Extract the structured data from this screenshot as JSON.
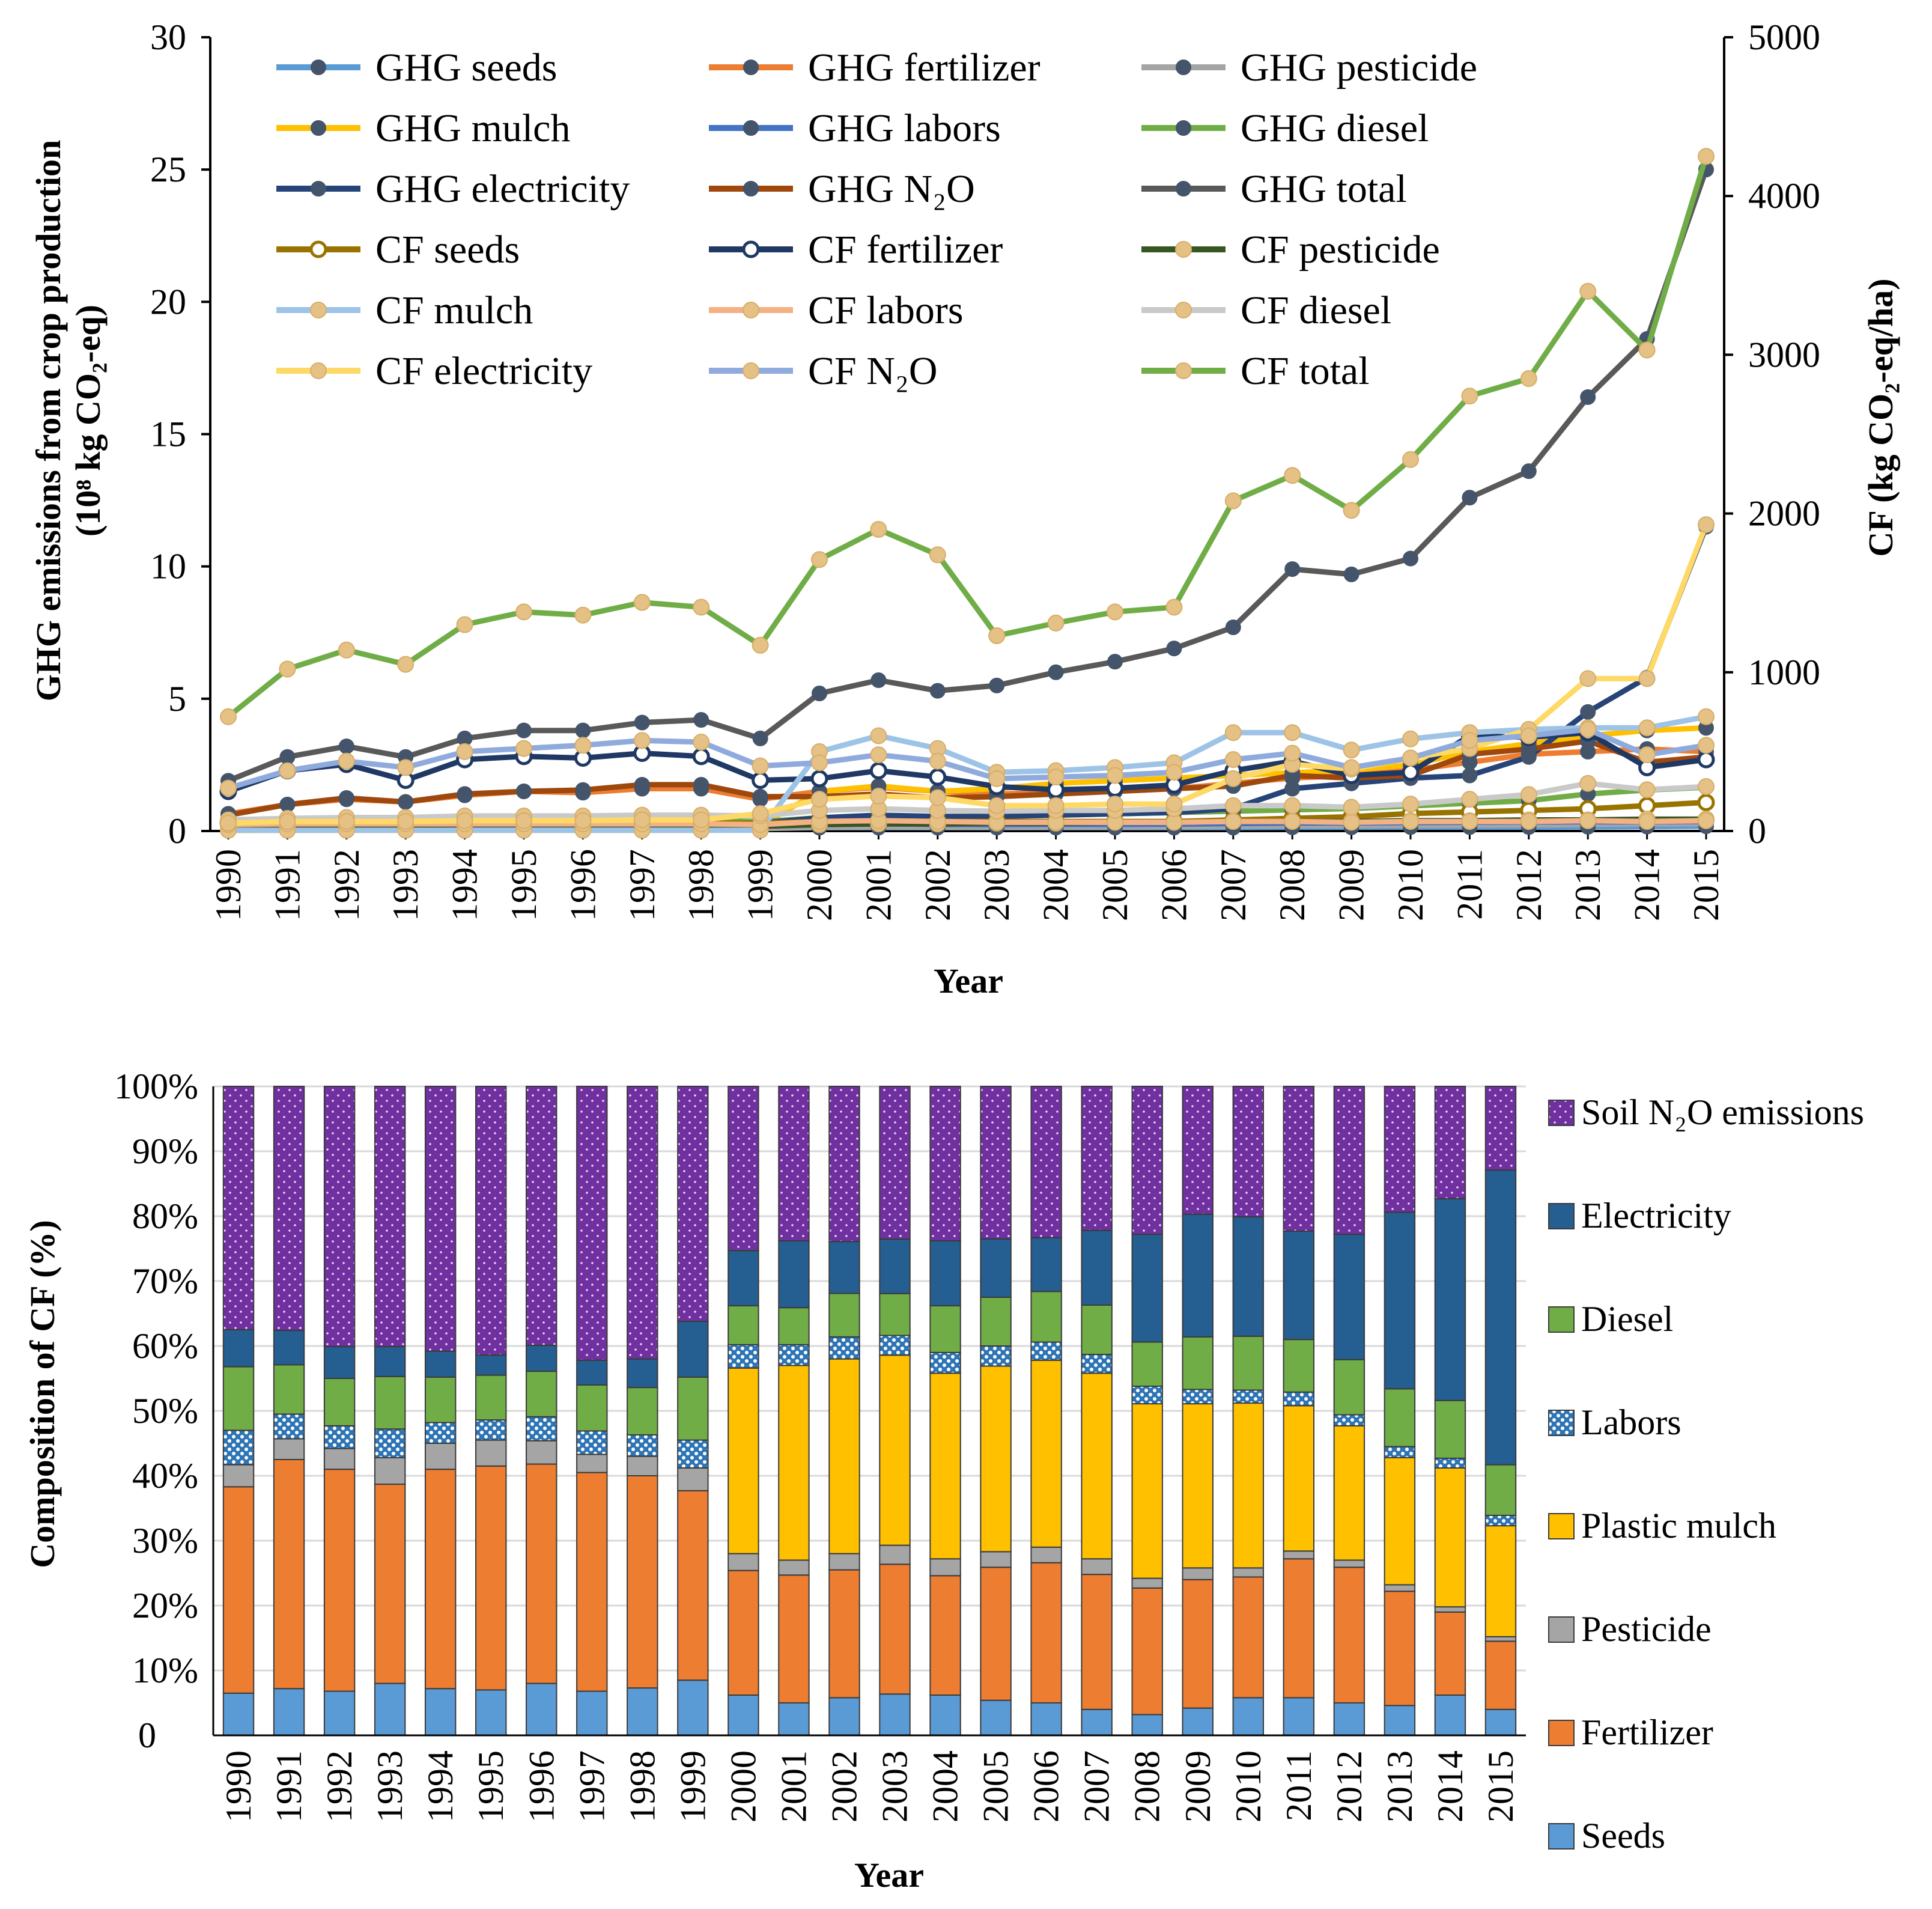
{
  "chart_data": [
    {
      "type": "line",
      "xlabel": "Year",
      "ylabel_left": "GHG emissions from crop production",
      "ylabel_left_unit": "(10⁸ kg CO₂-eq)",
      "ylabel_right": "CF (kg CO₂-eq/ha)",
      "ylim_left": [
        0,
        30
      ],
      "yticks_left": [
        "0",
        "5",
        "10",
        "15",
        "20",
        "25",
        "30"
      ],
      "ylim_right": [
        0,
        5000
      ],
      "yticks_right": [
        "0",
        "1000",
        "2000",
        "3000",
        "4000",
        "5000"
      ],
      "x": [
        "1990",
        "1991",
        "1992",
        "1993",
        "1994",
        "1995",
        "1996",
        "1997",
        "1998",
        "1999",
        "2000",
        "2001",
        "2002",
        "2003",
        "2004",
        "2005",
        "2006",
        "2007",
        "2008",
        "2009",
        "2010",
        "2011",
        "2012",
        "2013",
        "2014",
        "2015"
      ],
      "legend_position": "top-left",
      "series": [
        {
          "name": "GHG seeds",
          "axis": "left",
          "color": "#5b9bd5",
          "marker": "dark",
          "values": [
            0.12,
            0.12,
            0.12,
            0.12,
            0.12,
            0.12,
            0.12,
            0.12,
            0.12,
            0.12,
            0.13,
            0.13,
            0.13,
            0.13,
            0.13,
            0.13,
            0.13,
            0.13,
            0.14,
            0.14,
            0.15,
            0.15,
            0.15,
            0.16,
            0.17,
            0.18
          ]
        },
        {
          "name": "GHG fertilizer",
          "axis": "left",
          "color": "#ed7d31",
          "marker": "dark",
          "values": [
            0.65,
            1.0,
            1.2,
            1.1,
            1.35,
            1.5,
            1.45,
            1.6,
            1.6,
            1.2,
            1.5,
            1.65,
            1.5,
            1.4,
            1.45,
            1.5,
            1.6,
            1.8,
            2.0,
            2.1,
            2.3,
            2.6,
            2.9,
            3.0,
            3.1,
            3.0
          ]
        },
        {
          "name": "GHG pesticide",
          "axis": "left",
          "color": "#a5a5a5",
          "marker": "dark",
          "values": [
            0.05,
            0.08,
            0.09,
            0.09,
            0.1,
            0.1,
            0.1,
            0.11,
            0.11,
            0.09,
            0.13,
            0.15,
            0.14,
            0.14,
            0.15,
            0.15,
            0.16,
            0.18,
            0.2,
            0.2,
            0.21,
            0.22,
            0.23,
            0.25,
            0.27,
            0.28
          ]
        },
        {
          "name": "GHG mulch",
          "axis": "left",
          "color": "#ffc000",
          "marker": "dark",
          "values": [
            0.02,
            0.03,
            0.03,
            0.03,
            0.03,
            0.03,
            0.03,
            0.03,
            0.03,
            0.2,
            1.5,
            1.7,
            1.5,
            1.6,
            1.8,
            1.9,
            2.0,
            2.1,
            2.2,
            2.3,
            2.5,
            3.0,
            3.3,
            3.6,
            3.8,
            3.9
          ]
        },
        {
          "name": "GHG labors",
          "axis": "left",
          "color": "#4472c4",
          "marker": "dark",
          "values": [
            0.1,
            0.15,
            0.17,
            0.16,
            0.18,
            0.19,
            0.2,
            0.2,
            0.2,
            0.18,
            0.25,
            0.27,
            0.25,
            0.24,
            0.25,
            0.25,
            0.26,
            0.28,
            0.3,
            0.3,
            0.32,
            0.33,
            0.34,
            0.35,
            0.35,
            0.36
          ]
        },
        {
          "name": "GHG diesel",
          "axis": "left",
          "color": "#70ad47",
          "marker": "dark",
          "values": [
            0.2,
            0.3,
            0.35,
            0.35,
            0.38,
            0.4,
            0.4,
            0.4,
            0.42,
            0.35,
            0.5,
            0.55,
            0.55,
            0.55,
            0.6,
            0.65,
            0.7,
            0.75,
            0.8,
            0.85,
            0.95,
            1.05,
            1.15,
            1.4,
            1.55,
            1.65
          ]
        },
        {
          "name": "GHG electricity",
          "axis": "left",
          "color": "#264478",
          "marker": "dark",
          "values": [
            0.12,
            0.2,
            0.22,
            0.2,
            0.25,
            0.25,
            0.25,
            0.26,
            0.27,
            0.3,
            0.5,
            0.6,
            0.55,
            0.55,
            0.6,
            0.65,
            0.7,
            0.85,
            1.6,
            1.8,
            2.0,
            2.1,
            2.8,
            4.5,
            5.8,
            11.5
          ]
        },
        {
          "name": "GHG N₂O",
          "axis": "left",
          "color": "#9e480e",
          "marker": "dark",
          "values": [
            0.6,
            1.0,
            1.25,
            1.1,
            1.4,
            1.5,
            1.55,
            1.75,
            1.75,
            1.3,
            1.3,
            1.4,
            1.25,
            1.3,
            1.4,
            1.5,
            1.6,
            1.7,
            2.1,
            2.0,
            2.1,
            2.9,
            3.1,
            3.4,
            2.6,
            2.8
          ]
        },
        {
          "name": "GHG total",
          "axis": "left",
          "color": "#595959",
          "marker": "dark",
          "values": [
            1.9,
            2.8,
            3.2,
            2.8,
            3.5,
            3.8,
            3.8,
            4.1,
            4.2,
            3.5,
            5.2,
            5.7,
            5.3,
            5.5,
            6.0,
            6.4,
            6.9,
            7.7,
            9.9,
            9.7,
            10.3,
            12.6,
            13.6,
            16.4,
            18.6,
            25.0
          ]
        },
        {
          "name": "CF seeds",
          "axis": "right",
          "color": "#997300",
          "marker": "ring",
          "values": [
            50,
            50,
            50,
            50,
            50,
            50,
            50,
            50,
            50,
            50,
            60,
            60,
            60,
            60,
            60,
            60,
            60,
            70,
            80,
            90,
            110,
            120,
            130,
            140,
            160,
            180
          ]
        },
        {
          "name": "CF fertilizer",
          "axis": "right",
          "color": "#1f3864",
          "marker": "ring",
          "values": [
            250,
            380,
            420,
            320,
            450,
            470,
            460,
            490,
            470,
            320,
            330,
            380,
            340,
            280,
            260,
            270,
            290,
            380,
            440,
            350,
            370,
            600,
            590,
            620,
            400,
            450
          ]
        },
        {
          "name": "CF pesticide",
          "axis": "right",
          "color": "#375623",
          "marker": "tan",
          "values": [
            30,
            35,
            35,
            35,
            40,
            40,
            40,
            40,
            40,
            30,
            40,
            45,
            45,
            50,
            50,
            55,
            55,
            60,
            60,
            60,
            65,
            65,
            70,
            70,
            75,
            75
          ]
        },
        {
          "name": "CF mulch",
          "axis": "right",
          "color": "#9dc3e6",
          "marker": "tan",
          "values": [
            5,
            5,
            5,
            5,
            5,
            5,
            5,
            5,
            5,
            5,
            500,
            600,
            520,
            370,
            380,
            400,
            430,
            620,
            620,
            510,
            580,
            620,
            640,
            650,
            650,
            720
          ]
        },
        {
          "name": "CF labors",
          "axis": "right",
          "color": "#f4b183",
          "marker": "tan",
          "values": [
            40,
            45,
            45,
            45,
            45,
            45,
            45,
            45,
            45,
            40,
            60,
            65,
            60,
            55,
            55,
            55,
            55,
            60,
            60,
            55,
            60,
            60,
            60,
            65,
            60,
            65
          ]
        },
        {
          "name": "CF diesel",
          "axis": "right",
          "color": "#c9c9c9",
          "marker": "tan",
          "values": [
            70,
            80,
            85,
            85,
            95,
            95,
            95,
            100,
            100,
            95,
            130,
            140,
            130,
            125,
            130,
            130,
            140,
            160,
            160,
            150,
            170,
            200,
            230,
            300,
            260,
            280
          ]
        },
        {
          "name": "CF electricity",
          "axis": "right",
          "color": "#ffd966",
          "marker": "tan",
          "values": [
            50,
            60,
            60,
            60,
            65,
            65,
            65,
            70,
            70,
            110,
            200,
            220,
            210,
            160,
            160,
            170,
            170,
            330,
            420,
            390,
            460,
            520,
            640,
            960,
            960,
            1930
          ]
        },
        {
          "name": "CF N₂O",
          "axis": "right",
          "color": "#8faadc",
          "marker": "tan",
          "values": [
            270,
            380,
            440,
            400,
            500,
            520,
            540,
            570,
            560,
            410,
            430,
            480,
            440,
            330,
            340,
            350,
            370,
            450,
            490,
            400,
            460,
            570,
            600,
            640,
            480,
            540
          ]
        },
        {
          "name": "CF total",
          "axis": "right",
          "color": "#70ad47",
          "marker": "tan",
          "values": [
            720,
            1020,
            1140,
            1050,
            1300,
            1380,
            1360,
            1440,
            1410,
            1170,
            1710,
            1900,
            1740,
            1230,
            1310,
            1380,
            1410,
            2080,
            2240,
            2020,
            2340,
            2740,
            2850,
            3400,
            3030,
            4250
          ]
        }
      ]
    },
    {
      "type": "bar",
      "stacked": "percent",
      "xlabel": "Year",
      "ylabel": "Composition of CF (%)",
      "ylim": [
        0,
        100
      ],
      "yticks": [
        "0",
        "10%",
        "20%",
        "30%",
        "40%",
        "50%",
        "60%",
        "70%",
        "80%",
        "90%",
        "100%"
      ],
      "categories": [
        "1990",
        "1991",
        "1992",
        "1993",
        "1994",
        "1995",
        "1996",
        "1997",
        "1998",
        "1999",
        "2000",
        "2001",
        "2002",
        "2003",
        "2004",
        "2005",
        "2006",
        "2007",
        "2008",
        "2009",
        "2010",
        "2011",
        "2012",
        "2013",
        "2014",
        "2015"
      ],
      "legend_position": "right",
      "series": [
        {
          "name": "Seeds",
          "color": "#5b9bd5",
          "pattern": "none",
          "values": [
            6.5,
            7.2,
            6.8,
            8.0,
            7.2,
            7.0,
            8.0,
            6.8,
            7.3,
            8.5,
            6.2,
            5.0,
            5.8,
            6.3,
            6.2,
            5.4,
            5.0,
            4.0,
            3.2,
            4.2,
            5.8,
            5.8,
            5.0,
            4.6,
            6.2,
            4.0
          ]
        },
        {
          "name": "Fertilizer",
          "color": "#ed7d31",
          "pattern": "none",
          "values": [
            31.8,
            35.3,
            34.2,
            30.7,
            33.8,
            34.5,
            33.8,
            33.7,
            32.7,
            29.2,
            19.2,
            19.7,
            19.7,
            19.8,
            18.4,
            20.5,
            21.6,
            20.8,
            19.5,
            19.8,
            18.6,
            21.4,
            20.9,
            17.6,
            12.8,
            10.5
          ]
        },
        {
          "name": "Pesticide",
          "color": "#a5a5a5",
          "pattern": "none",
          "values": [
            3.4,
            3.2,
            3.2,
            4.1,
            4.0,
            4.0,
            3.6,
            2.8,
            3.0,
            3.5,
            2.6,
            2.3,
            2.5,
            2.9,
            2.6,
            2.4,
            2.4,
            2.4,
            1.5,
            1.8,
            1.4,
            1.2,
            1.1,
            1.0,
            0.8,
            0.7
          ]
        },
        {
          "name": "Plastic mulch",
          "color": "#ffc000",
          "pattern": "none",
          "values": [
            0,
            0,
            0,
            0,
            0,
            0,
            0,
            0,
            0,
            0,
            28.6,
            30.0,
            30.0,
            29.0,
            28.6,
            28.6,
            28.8,
            28.6,
            26.9,
            25.3,
            25.4,
            22.4,
            20.7,
            19.6,
            21.4,
            17.1
          ]
        },
        {
          "name": "Labors",
          "color": "#2e75b6",
          "pattern": "dots",
          "values": [
            5.3,
            3.8,
            3.5,
            4.4,
            3.2,
            3.1,
            3.7,
            3.6,
            3.3,
            4.3,
            3.6,
            3.2,
            3.4,
            3.0,
            3.2,
            3.1,
            2.8,
            2.9,
            2.7,
            2.2,
            2.0,
            2.1,
            1.7,
            1.7,
            1.5,
            1.6
          ]
        },
        {
          "name": "Diesel",
          "color": "#70ad47",
          "pattern": "none",
          "values": [
            9.8,
            7.6,
            7.3,
            8.1,
            7.0,
            6.9,
            7.0,
            7.1,
            7.3,
            9.7,
            6.0,
            5.7,
            6.7,
            6.4,
            7.2,
            7.5,
            7.8,
            7.6,
            6.8,
            8.1,
            8.3,
            8.1,
            8.5,
            8.9,
            8.9,
            7.8
          ]
        },
        {
          "name": "Electricity",
          "color": "#255e91",
          "pattern": "none",
          "values": [
            5.7,
            5.3,
            4.9,
            4.6,
            4.0,
            3.1,
            4.0,
            3.8,
            4.4,
            8.6,
            8.5,
            10.3,
            8.0,
            8.3,
            10.0,
            9.0,
            8.3,
            11.5,
            16.6,
            18.9,
            18.4,
            16.7,
            19.3,
            27.2,
            31.1,
            45.4
          ]
        },
        {
          "name": "Soil N₂O emissions",
          "color": "#7030a0",
          "pattern": "dots",
          "values": [
            37.5,
            37.6,
            40.1,
            40.1,
            40.8,
            41.4,
            39.9,
            42.2,
            42.0,
            36.2,
            25.3,
            23.8,
            23.9,
            23.3,
            23.8,
            23.5,
            23.3,
            22.2,
            22.8,
            19.7,
            20.1,
            22.3,
            22.8,
            19.4,
            17.3,
            12.9
          ]
        }
      ]
    }
  ]
}
